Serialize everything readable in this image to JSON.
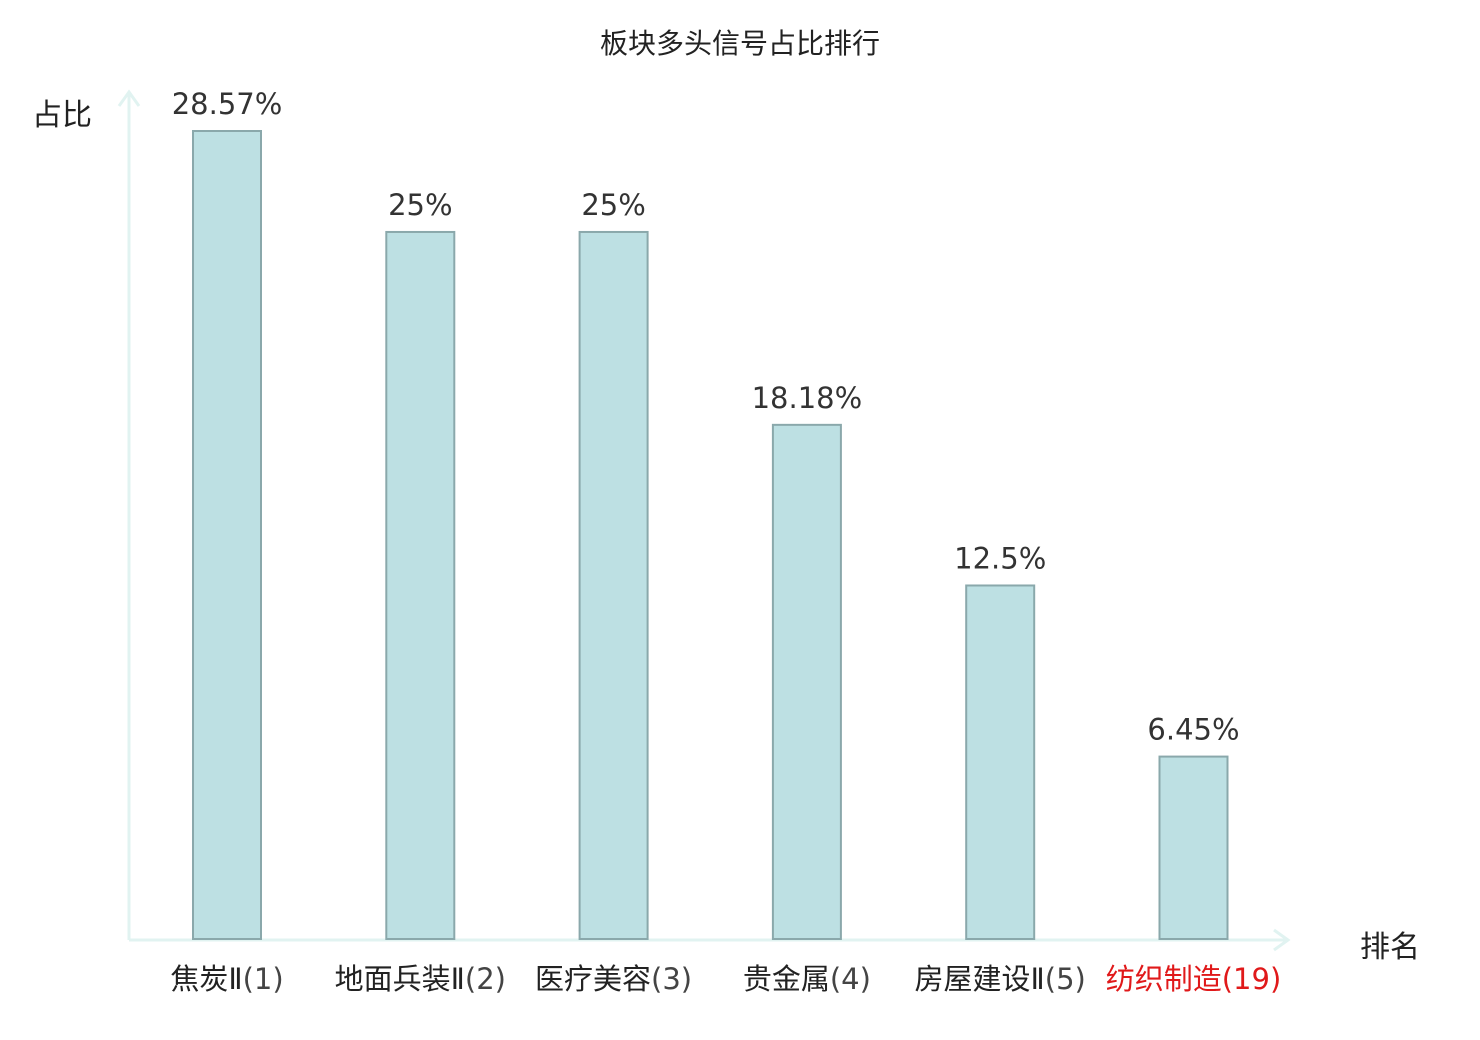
{
  "chart_data": {
    "type": "bar",
    "title": "板块多头信号占比排行",
    "ylabel": "占比",
    "xlabel": "排名",
    "categories": [
      {
        "name": "焦炭Ⅱ",
        "rank": "(1)"
      },
      {
        "name": "地面兵装Ⅱ",
        "rank": "(2)"
      },
      {
        "name": "医疗美容",
        "rank": "(3)"
      },
      {
        "name": "贵金属",
        "rank": "(4)"
      },
      {
        "name": "房屋建设Ⅱ",
        "rank": "(5)"
      },
      {
        "name": "纺织制造",
        "rank": "(19)"
      }
    ],
    "values": [
      28.57,
      25,
      25,
      18.18,
      12.5,
      6.45
    ],
    "value_labels": [
      "28.57%",
      "25%",
      "25%",
      "18.18%",
      "12.5%",
      "6.45%"
    ],
    "highlighted_category": "纺织制造",
    "ylim": [
      0,
      28.57
    ],
    "grid": false,
    "colors": {
      "bar_fill": "#bde0e3",
      "bar_stroke": "#8aa8ab",
      "axis": "#e1f3f1",
      "highlight": "#e0191a"
    }
  }
}
